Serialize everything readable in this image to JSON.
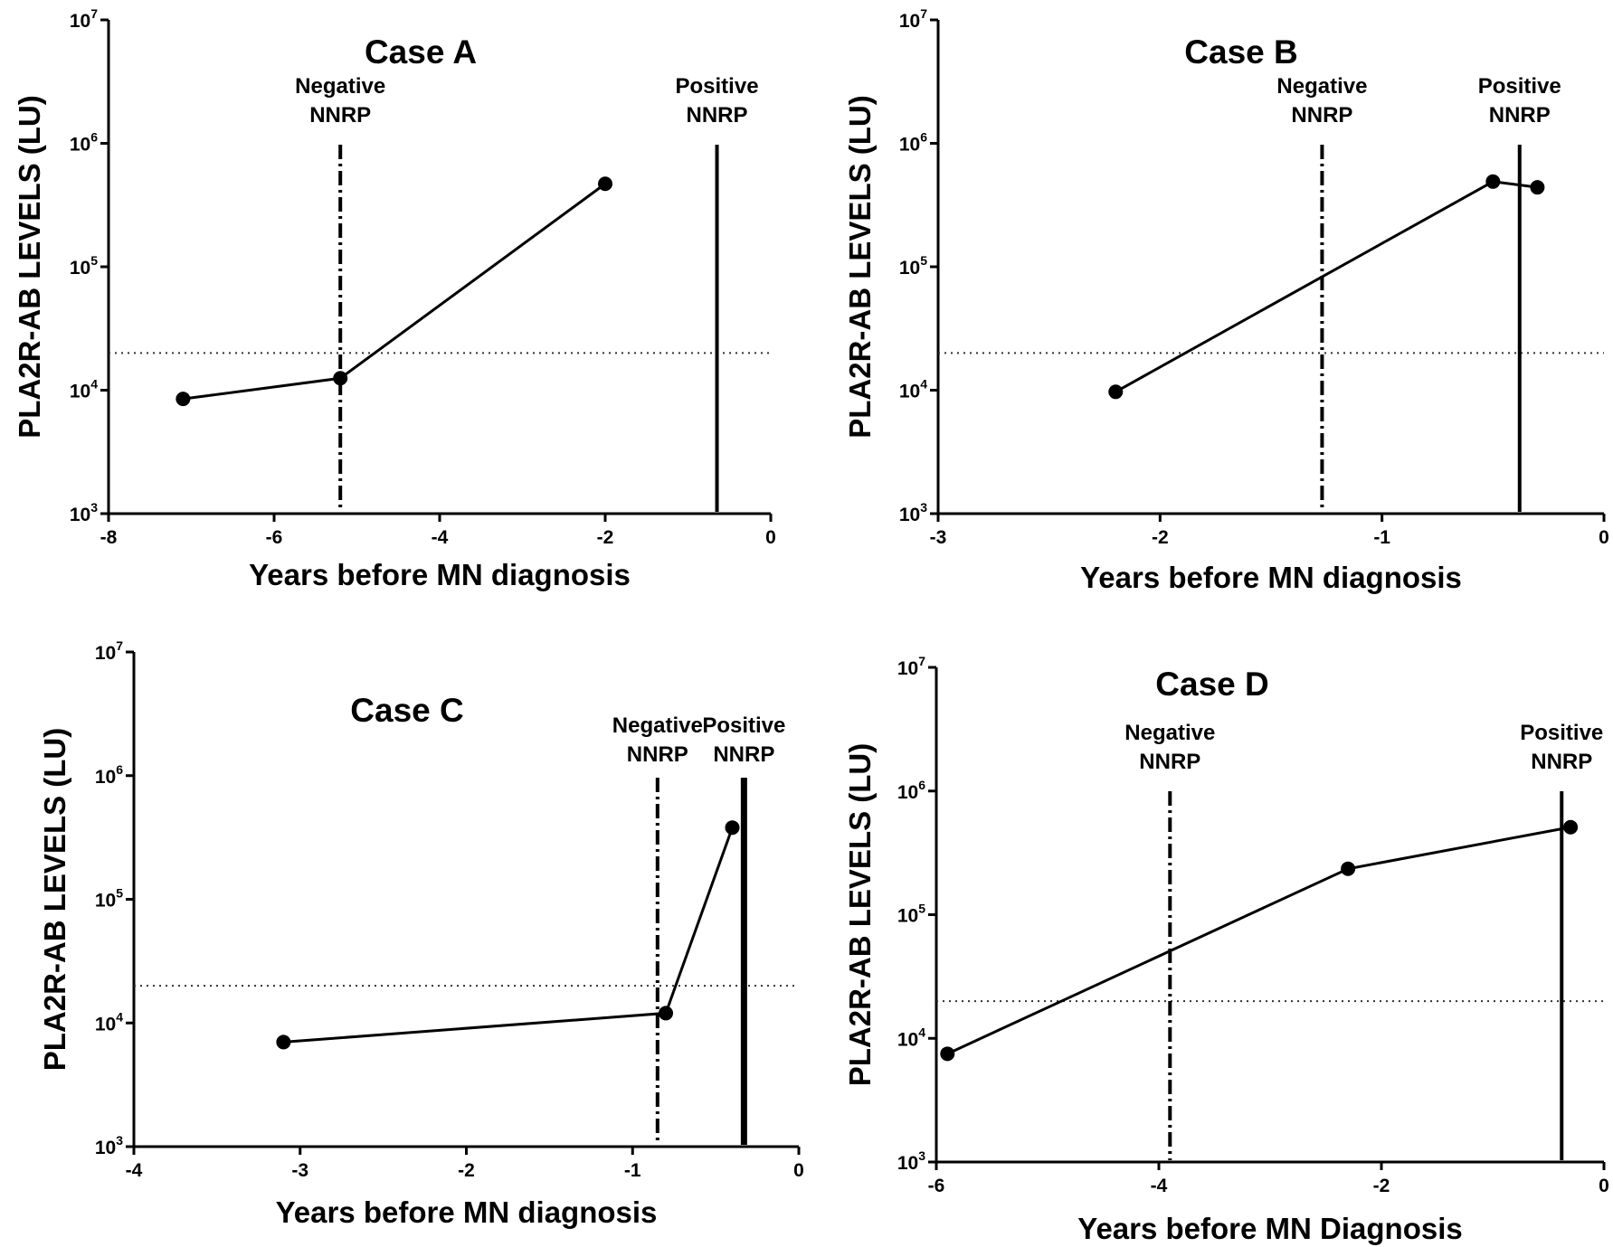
{
  "chart_data": [
    {
      "type": "line",
      "title": "Case A",
      "xlabel": "Years before MN diagnosis",
      "ylabel": "PLA2R-AB LEVELS (LU)",
      "xlim": [
        -8,
        0
      ],
      "ylim": [
        1000,
        10000000
      ],
      "y_scale": "log",
      "x_ticks": [
        "-8",
        "-6",
        "-4",
        "-2",
        "0"
      ],
      "y_ticks": [
        {
          "base": "10",
          "exp": "3"
        },
        {
          "base": "10",
          "exp": "4"
        },
        {
          "base": "10",
          "exp": "5"
        },
        {
          "base": "10",
          "exp": "6"
        },
        {
          "base": "10",
          "exp": "7"
        }
      ],
      "series": [
        {
          "x": [
            -7.1,
            -5.2,
            -2.0
          ],
          "y": [
            8500,
            12500,
            470000
          ]
        }
      ],
      "threshold": 20000,
      "markers": [
        {
          "x": -5.2,
          "style": "dash-dot",
          "label_line1": "Negative",
          "label_line2": "NNRP"
        },
        {
          "x": -0.65,
          "style": "solid",
          "label_line1": "Positive",
          "label_line2": "NNRP"
        }
      ]
    },
    {
      "type": "line",
      "title": "Case B",
      "xlabel": "Years before MN diagnosis",
      "ylabel": "PLA2R-AB LEVELS (LU)",
      "xlim": [
        -3,
        0
      ],
      "ylim": [
        1000,
        10000000
      ],
      "y_scale": "log",
      "x_ticks": [
        "-3",
        "-2",
        "-1",
        "0"
      ],
      "y_ticks": [
        {
          "base": "10",
          "exp": "3"
        },
        {
          "base": "10",
          "exp": "4"
        },
        {
          "base": "10",
          "exp": "5"
        },
        {
          "base": "10",
          "exp": "6"
        },
        {
          "base": "10",
          "exp": "7"
        }
      ],
      "series": [
        {
          "x": [
            -2.2,
            -0.5,
            -0.3
          ],
          "y": [
            9700,
            490000,
            440000
          ]
        }
      ],
      "threshold": 20000,
      "markers": [
        {
          "x": -1.27,
          "style": "dash-dot",
          "label_line1": "Negative",
          "label_line2": "NNRP"
        },
        {
          "x": -0.38,
          "style": "solid",
          "label_line1": "Positive",
          "label_line2": "NNRP"
        }
      ]
    },
    {
      "type": "line",
      "title": "Case C",
      "xlabel": "Years before MN diagnosis",
      "ylabel": "PLA2R-AB LEVELS (LU)",
      "xlim": [
        -4,
        0
      ],
      "ylim": [
        1000,
        10000000
      ],
      "y_scale": "log",
      "x_ticks": [
        "-4",
        "-3",
        "-2",
        "-1",
        "0"
      ],
      "y_ticks": [
        {
          "base": "10",
          "exp": "3"
        },
        {
          "base": "10",
          "exp": "4"
        },
        {
          "base": "10",
          "exp": "5"
        },
        {
          "base": "10",
          "exp": "6"
        },
        {
          "base": "10",
          "exp": "7"
        }
      ],
      "series": [
        {
          "x": [
            -3.1,
            -0.8,
            -0.4
          ],
          "y": [
            7000,
            12000,
            380000
          ]
        }
      ],
      "threshold": 20000,
      "markers": [
        {
          "x": -0.85,
          "style": "dash-dot",
          "label_line1": "Negative",
          "label_line2": "NNRP"
        },
        {
          "x": -0.33,
          "style": "solid-thick",
          "label_line1": "Positive",
          "label_line2": "NNRP"
        }
      ]
    },
    {
      "type": "line",
      "title": "Case D",
      "xlabel": "Years before MN Diagnosis",
      "ylabel": "PLA2R-AB LEVELS (LU)",
      "xlim": [
        -6,
        0
      ],
      "ylim": [
        1000,
        10000000
      ],
      "y_scale": "log",
      "x_ticks": [
        "-6",
        "-4",
        "-2",
        "0"
      ],
      "y_ticks": [
        {
          "base": "10",
          "exp": "3"
        },
        {
          "base": "10",
          "exp": "4"
        },
        {
          "base": "10",
          "exp": "5"
        },
        {
          "base": "10",
          "exp": "6"
        },
        {
          "base": "10",
          "exp": "7"
        }
      ],
      "series": [
        {
          "x": [
            -5.9,
            -2.3,
            -0.3
          ],
          "y": [
            7500,
            235000,
            510000
          ]
        }
      ],
      "threshold": 20000,
      "markers": [
        {
          "x": -3.9,
          "style": "dash-dot",
          "label_line1": "Negative",
          "label_line2": "NNRP"
        },
        {
          "x": -0.38,
          "style": "solid",
          "label_line1": "Positive",
          "label_line2": "NNRP"
        }
      ]
    }
  ]
}
